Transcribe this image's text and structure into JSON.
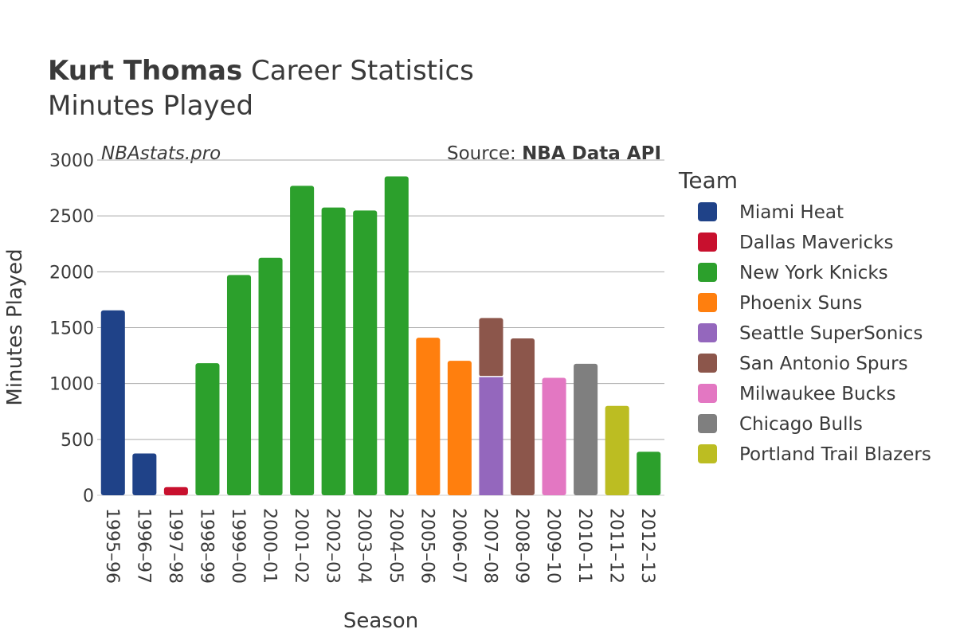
{
  "header": {
    "player": "Kurt Thomas",
    "title_rest": "Career Statistics",
    "subtitle": "Minutes Played",
    "watermark": "NBAstats.pro",
    "source_prefix": "Source: ",
    "source_name": "NBA Data API"
  },
  "chart_data": {
    "type": "bar",
    "stacked": true,
    "xlabel": "Season",
    "ylabel": "Minutes Played",
    "ylim": [
      0,
      3000
    ],
    "yticks": [
      0,
      500,
      1000,
      1500,
      2000,
      2500,
      3000
    ],
    "grid": true,
    "legend_title": "Team",
    "legend_position": "right",
    "categories": [
      "1995–96",
      "1996–97",
      "1997–98",
      "1998–99",
      "1999–00",
      "2000–01",
      "2001–02",
      "2002–03",
      "2003–04",
      "2004–05",
      "2005–06",
      "2006–07",
      "2007–08",
      "2008–09",
      "2009–10",
      "2010–11",
      "2011–12",
      "2012–13"
    ],
    "teams": [
      {
        "name": "Miami Heat",
        "color": "#1f4288"
      },
      {
        "name": "Dallas Mavericks",
        "color": "#c8102e"
      },
      {
        "name": "New York Knicks",
        "color": "#2ca02c"
      },
      {
        "name": "Phoenix Suns",
        "color": "#ff7f0e"
      },
      {
        "name": "Seattle SuperSonics",
        "color": "#9467bd"
      },
      {
        "name": "San Antonio Spurs",
        "color": "#8c564b"
      },
      {
        "name": "Milwaukee Bucks",
        "color": "#e377c2"
      },
      {
        "name": "Chicago Bulls",
        "color": "#7f7f7f"
      },
      {
        "name": "Portland Trail Blazers",
        "color": "#bcbd22"
      }
    ],
    "bars": [
      {
        "season": "1995–96",
        "segments": [
          {
            "team": "Miami Heat",
            "value": 1655
          }
        ]
      },
      {
        "season": "1996–97",
        "segments": [
          {
            "team": "Miami Heat",
            "value": 374
          }
        ]
      },
      {
        "season": "1997–98",
        "segments": [
          {
            "team": "Dallas Mavericks",
            "value": 73
          }
        ]
      },
      {
        "season": "1998–99",
        "segments": [
          {
            "team": "New York Knicks",
            "value": 1182
          }
        ]
      },
      {
        "season": "1999–00",
        "segments": [
          {
            "team": "New York Knicks",
            "value": 1971
          }
        ]
      },
      {
        "season": "2000–01",
        "segments": [
          {
            "team": "New York Knicks",
            "value": 2125
          }
        ]
      },
      {
        "season": "2001–02",
        "segments": [
          {
            "team": "New York Knicks",
            "value": 2769
          }
        ]
      },
      {
        "season": "2002–03",
        "segments": [
          {
            "team": "New York Knicks",
            "value": 2575
          }
        ]
      },
      {
        "season": "2003–04",
        "segments": [
          {
            "team": "New York Knicks",
            "value": 2548
          }
        ]
      },
      {
        "season": "2004–05",
        "segments": [
          {
            "team": "New York Knicks",
            "value": 2854
          }
        ]
      },
      {
        "season": "2005–06",
        "segments": [
          {
            "team": "Phoenix Suns",
            "value": 1410
          }
        ]
      },
      {
        "season": "2006–07",
        "segments": [
          {
            "team": "Phoenix Suns",
            "value": 1203
          }
        ]
      },
      {
        "season": "2007–08",
        "segments": [
          {
            "team": "Seattle SuperSonics",
            "value": 1063
          },
          {
            "team": "San Antonio Spurs",
            "value": 523
          }
        ]
      },
      {
        "season": "2008–09",
        "segments": [
          {
            "team": "San Antonio Spurs",
            "value": 1404
          }
        ]
      },
      {
        "season": "2009–10",
        "segments": [
          {
            "team": "Milwaukee Bucks",
            "value": 1051
          }
        ]
      },
      {
        "season": "2010–11",
        "segments": [
          {
            "team": "Chicago Bulls",
            "value": 1177
          }
        ]
      },
      {
        "season": "2011–12",
        "segments": [
          {
            "team": "Portland Trail Blazers",
            "value": 800
          }
        ]
      },
      {
        "season": "2012–13",
        "segments": [
          {
            "team": "New York Knicks",
            "value": 389
          }
        ]
      }
    ]
  }
}
